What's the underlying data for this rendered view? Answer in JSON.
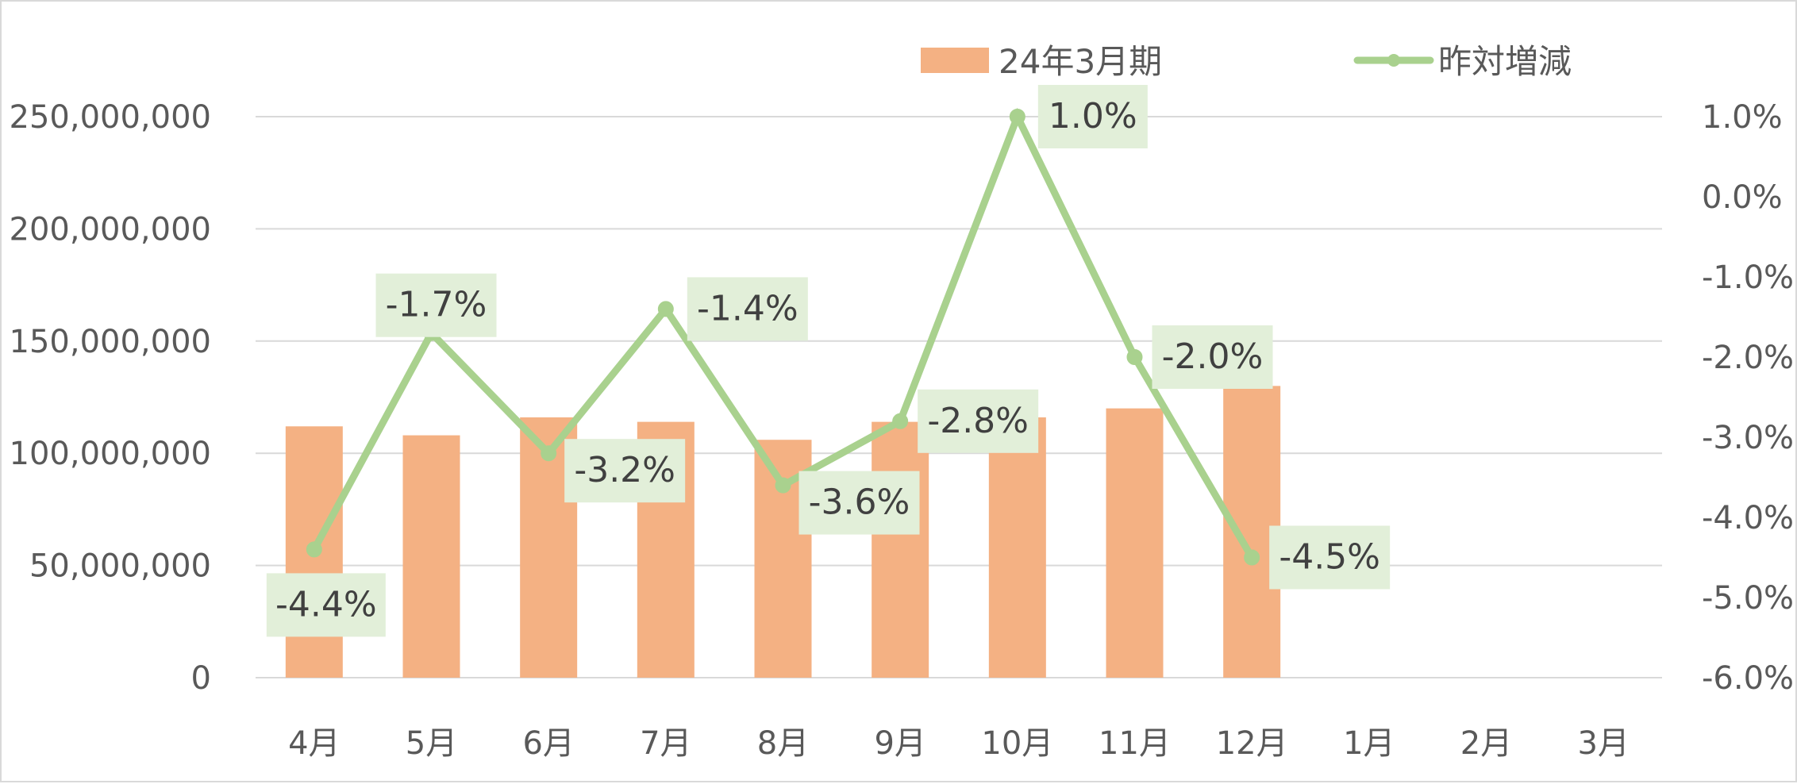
{
  "chart_data": {
    "type": "bar",
    "categories": [
      "4月",
      "5月",
      "6月",
      "7月",
      "8月",
      "9月",
      "10月",
      "11月",
      "12月",
      "1月",
      "2月",
      "3月"
    ],
    "series": [
      {
        "name": "24年3月期",
        "type": "bar",
        "axis": "left",
        "values": [
          112000000,
          108000000,
          116000000,
          114000000,
          106000000,
          114000000,
          116000000,
          120000000,
          130000000,
          null,
          null,
          null
        ]
      },
      {
        "name": "昨対増減",
        "type": "line",
        "axis": "right",
        "values": [
          -4.4,
          -1.7,
          -3.2,
          -1.4,
          -3.6,
          -2.8,
          1.0,
          -2.0,
          -4.5,
          null,
          null,
          null
        ],
        "labels": [
          "-4.4%",
          "-1.7%",
          "-3.2%",
          "-1.4%",
          "-3.6%",
          "-2.8%",
          "1.0%",
          "-2.0%",
          "-4.5%",
          "",
          "",
          ""
        ]
      }
    ],
    "y_left": {
      "ylim": [
        0,
        250000000
      ],
      "ticks": [
        "0",
        "50,000,000",
        "100,000,000",
        "150,000,000",
        "200,000,000",
        "250,000,000"
      ]
    },
    "y_right": {
      "ylim": [
        -6.0,
        1.0
      ],
      "ticks": [
        "-6.0%",
        "-5.0%",
        "-4.0%",
        "-3.0%",
        "-2.0%",
        "-1.0%",
        "0.0%",
        "1.0%"
      ]
    },
    "legend": {
      "position": "top",
      "items": [
        "24年3月期",
        "昨対増減"
      ]
    },
    "grid": true,
    "colors": {
      "bar": "#f4b183",
      "line": "#a9d18e",
      "label_bg": "#e2efd9",
      "grid": "#d9d9d9",
      "axis_text": "#595959",
      "label_text": "#404040"
    }
  }
}
